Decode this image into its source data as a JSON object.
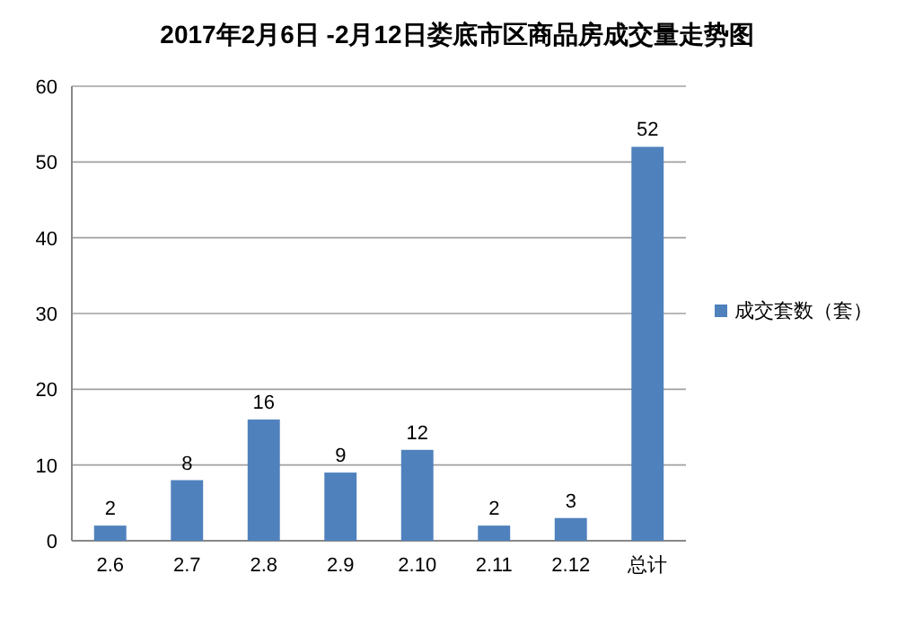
{
  "chart_data": {
    "type": "bar",
    "title": "2017年2月6日 -2月12日娄底市区商品房成交量走势图",
    "categories": [
      "2.6",
      "2.7",
      "2.8",
      "2.9",
      "2.10",
      "2.11",
      "2.12",
      "总计"
    ],
    "series": [
      {
        "name": "成交套数（套）",
        "color": "#4f81bd",
        "values": [
          2,
          8,
          16,
          9,
          12,
          2,
          3,
          52
        ]
      }
    ],
    "ylim": [
      0,
      60
    ],
    "yticks": [
      0,
      10,
      20,
      30,
      40,
      50,
      60
    ],
    "grid": "y",
    "legend": "right",
    "data_labels": true
  }
}
